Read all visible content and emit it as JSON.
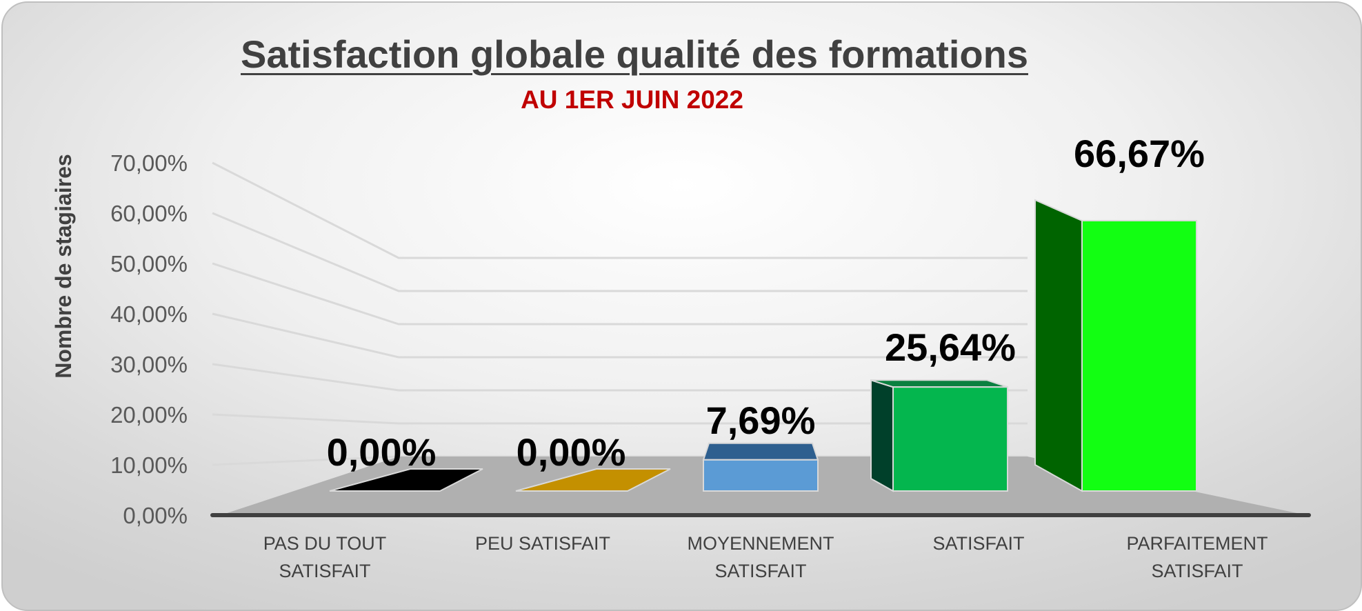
{
  "chart_data": {
    "type": "bar",
    "title": "Satisfaction globale qualité des formations",
    "subtitle": "AU 1ER JUIN 2022",
    "xlabel": "",
    "ylabel": "Nombre de stagiaires",
    "ylim": [
      0,
      70
    ],
    "yticks": [
      "0,00%",
      "10,00%",
      "20,00%",
      "30,00%",
      "40,00%",
      "50,00%",
      "60,00%",
      "70,00%"
    ],
    "grid": true,
    "categories": [
      [
        "PAS DU TOUT",
        "SATISFAIT"
      ],
      [
        "PEU SATISFAIT"
      ],
      [
        "MOYENNEMENT",
        "SATISFAIT"
      ],
      [
        "SATISFAIT"
      ],
      [
        "PARFAITEMENT",
        "SATISFAIT"
      ]
    ],
    "values": [
      0,
      0,
      7.69,
      25.64,
      66.67
    ],
    "data_labels": [
      "0,00%",
      "0,00%",
      "7,69%",
      "25,64%",
      "66,67%"
    ],
    "colors": [
      "#000000",
      "#c49000",
      "#5b9bd5",
      "#00b050",
      "#11ff11"
    ],
    "side_colors": [
      "#000000",
      "#c49000",
      "#2e5f8f",
      "#00402a",
      "#006400"
    ],
    "top_colors": [
      "#000000",
      "#c49000",
      "#3e6fa0",
      "#0a8040",
      "#0cc40c"
    ]
  }
}
